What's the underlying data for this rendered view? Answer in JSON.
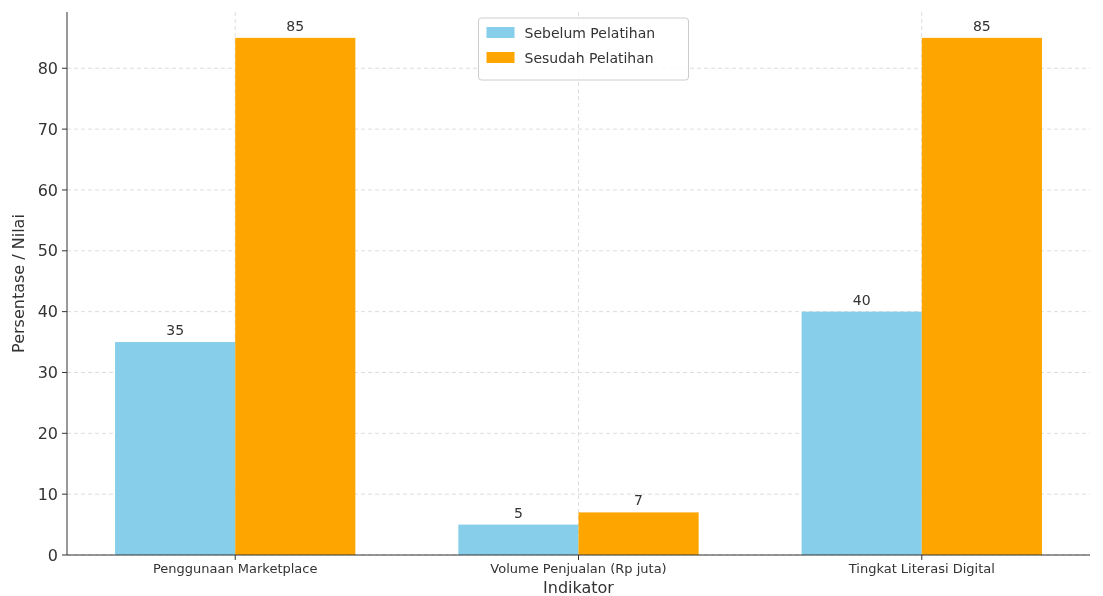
{
  "chart_data": {
    "type": "bar",
    "xlabel": "Indikator",
    "ylabel": "Persentase / Nilai",
    "categories": [
      "Penggunaan Marketplace",
      "Volume Penjualan (Rp juta)",
      "Tingkat Literasi Digital"
    ],
    "series": [
      {
        "name": "Sebelum Pelatihan",
        "color": "#87ceeb",
        "values": [
          35,
          5,
          40
        ]
      },
      {
        "name": "Sesudah Pelatihan",
        "color": "#ffa500",
        "values": [
          85,
          7,
          85
        ]
      }
    ],
    "ylim": [
      0,
      89.25
    ],
    "yticks": [
      0,
      10,
      20,
      30,
      40,
      50,
      60,
      70,
      80
    ],
    "grid": true,
    "legend": "top",
    "data_labels": true
  }
}
